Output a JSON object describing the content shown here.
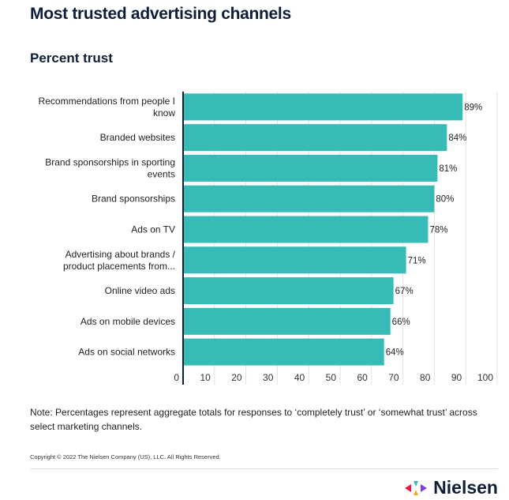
{
  "title": "Most trusted advertising channels",
  "subtitle": "Percent trust",
  "note": "Note: Percentages represent aggregate totals for responses to ‘completely trust’ or ‘somewhat trust’ across select marketing channels.",
  "copyright": "Copyright © 2022 The Nielsen Company (US), LLC. All Rights Reserved.",
  "logo": "Nielsen",
  "chart_data": {
    "type": "bar",
    "orientation": "horizontal",
    "categories": [
      [
        "Recommendations from people I",
        "know"
      ],
      [
        "Branded websites"
      ],
      [
        "Brand sponsorships in sporting",
        "events"
      ],
      [
        "Brand sponsorships"
      ],
      [
        "Ads on TV"
      ],
      [
        "Advertising about brands /",
        "product placements from..."
      ],
      [
        "Online video ads"
      ],
      [
        "Ads on mobile devices"
      ],
      [
        "Ads on social networks"
      ]
    ],
    "values": [
      89,
      84,
      81,
      80,
      78,
      71,
      67,
      66,
      64
    ],
    "data_labels": [
      "89%",
      "84%",
      "81%",
      "80%",
      "78%",
      "71%",
      "67%",
      "66%",
      "64%"
    ],
    "xlim": [
      0,
      100
    ],
    "xticks": [
      0,
      10,
      20,
      30,
      40,
      50,
      60,
      70,
      80,
      90,
      100
    ],
    "grid": true,
    "bar_color": "#36bbb7",
    "axis_color": "#0e1e3a"
  }
}
